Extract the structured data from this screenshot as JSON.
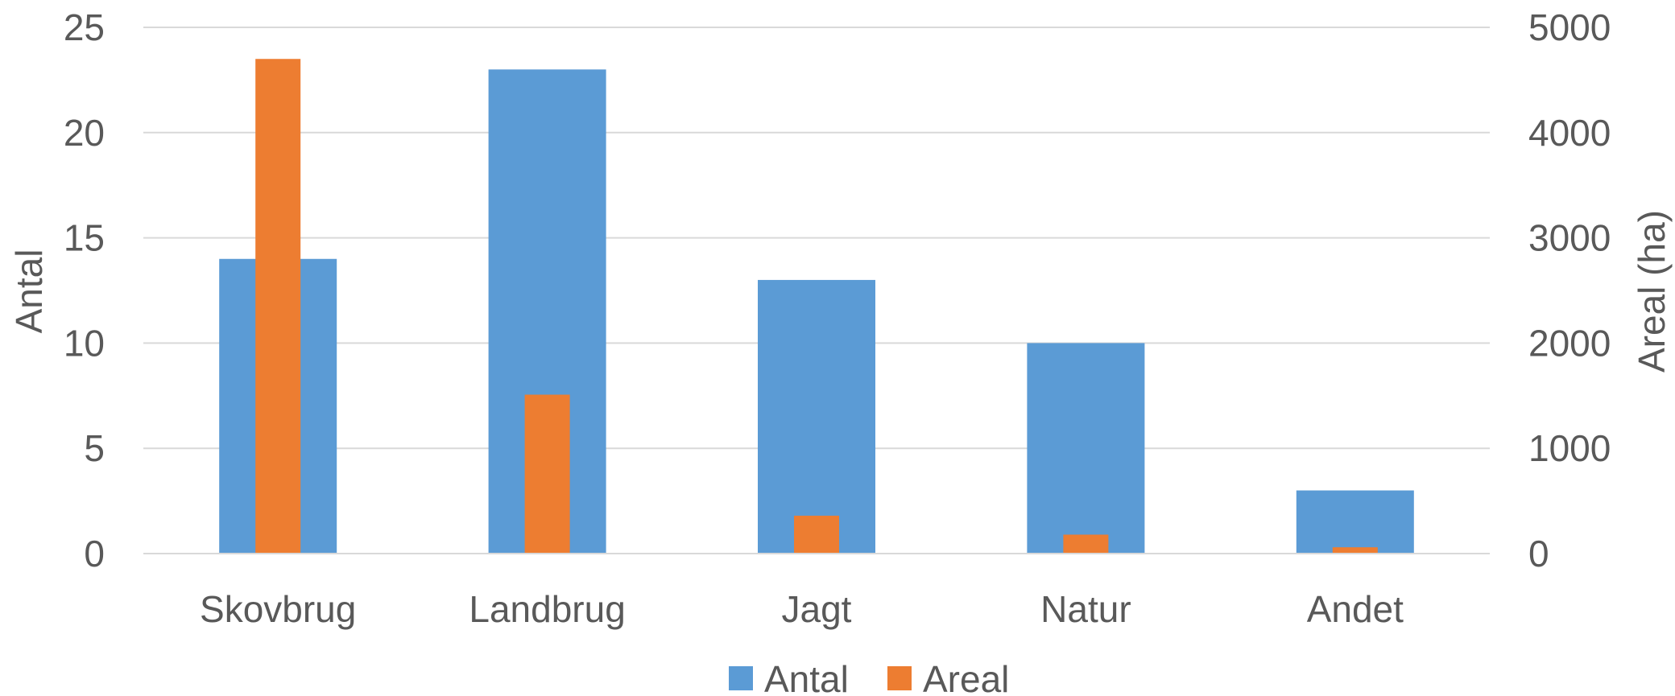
{
  "chart_data": {
    "type": "bar",
    "categories": [
      "Skovbrug",
      "Landbrug",
      "Jagt",
      "Natur",
      "Andet"
    ],
    "series": [
      {
        "name": "Antal",
        "axis": "left",
        "color": "#5B9BD5",
        "values": [
          14,
          23,
          13,
          10,
          3
        ]
      },
      {
        "name": "Areal",
        "axis": "right",
        "color": "#ED7D31",
        "values": [
          4700,
          1510,
          360,
          180,
          60
        ]
      }
    ],
    "ylabel": "Antal",
    "y2label": "Areal (ha)",
    "ylim": [
      0,
      25
    ],
    "y2lim": [
      0,
      5000
    ],
    "yticks": [
      "0",
      "5",
      "10",
      "15",
      "20",
      "25"
    ],
    "y2ticks": [
      "0",
      "1000",
      "2000",
      "3000",
      "4000",
      "5000"
    ],
    "grid": true,
    "legend": "bottom-center"
  }
}
